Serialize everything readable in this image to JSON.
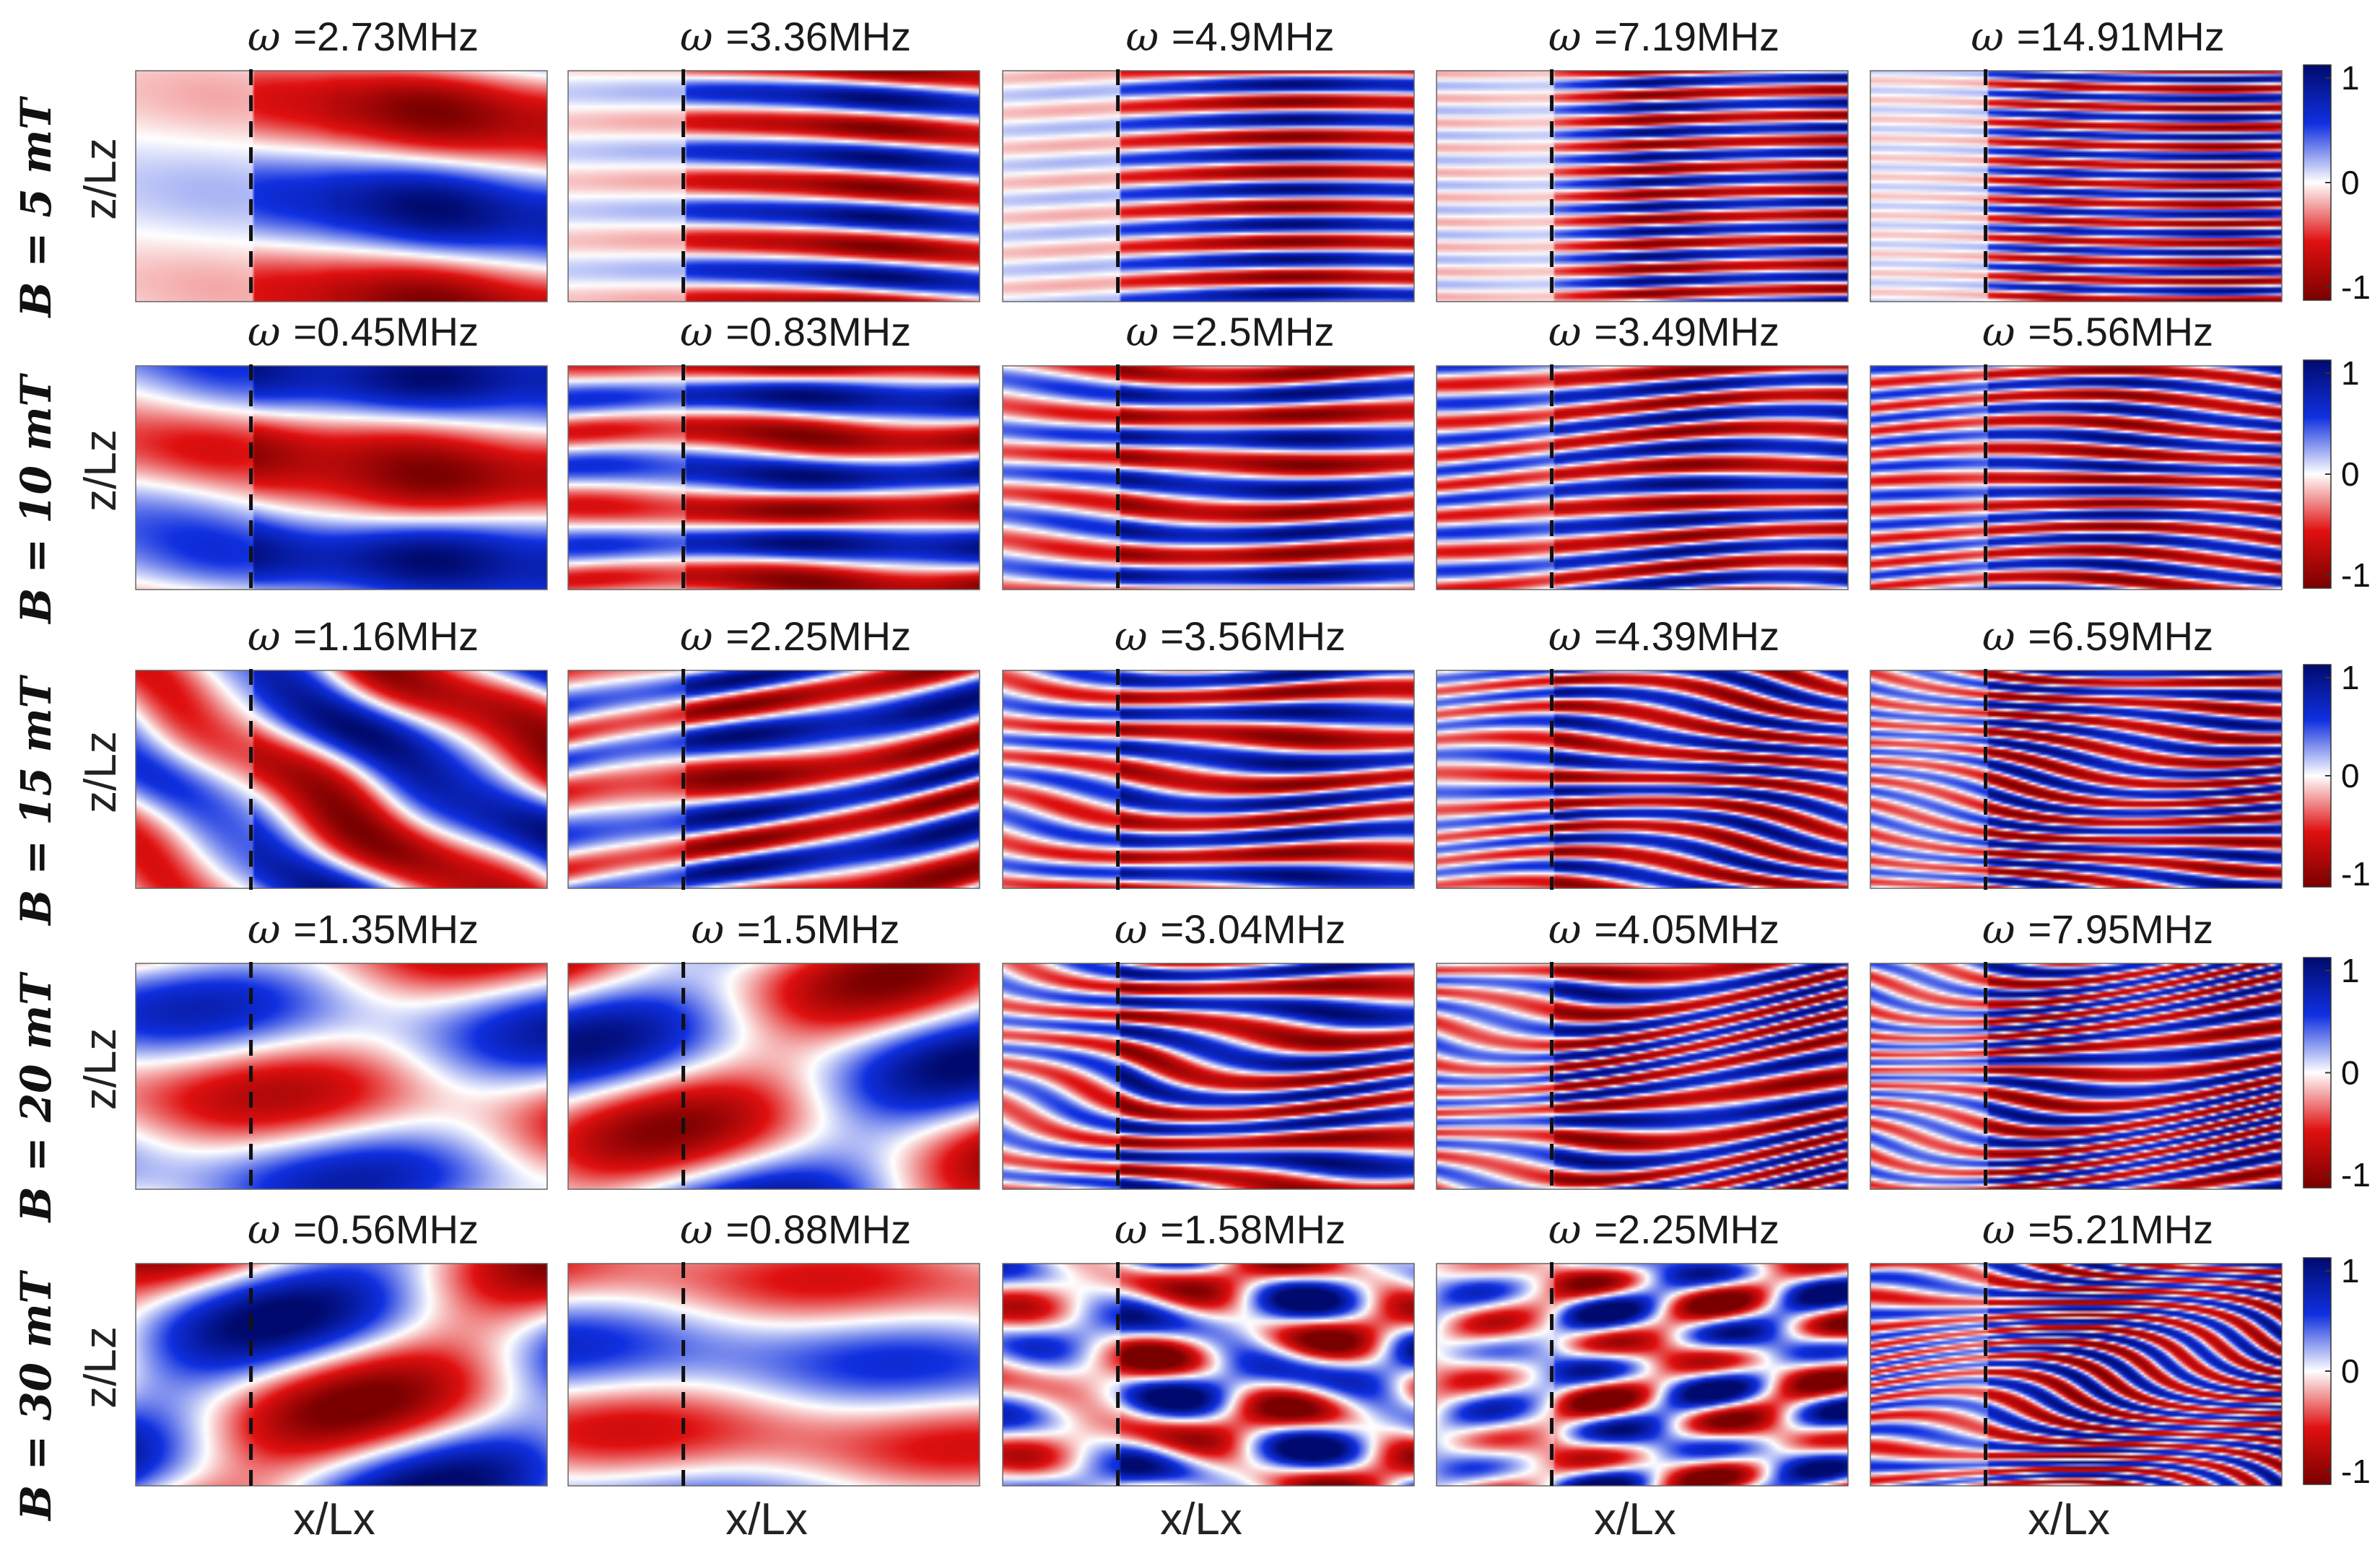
{
  "chart_data": {
    "type": "heatmap",
    "colorbar": {
      "min": -1,
      "max": 1,
      "ticks": [
        "1",
        "0",
        "-1"
      ],
      "colormap": [
        "#7a0000",
        "#e01010",
        "#ffffff",
        "#1030e0",
        "#000a6e"
      ]
    },
    "x_label": "x/Lx",
    "z_label": "z/Lz",
    "omega_symbol": "ω",
    "dashed_line_x_fraction": 0.28,
    "rows": [
      {
        "label": "B = 5 mT",
        "frequencies": [
          "=2.73MHz",
          "=3.36MHz",
          "=4.9MHz",
          "=7.19MHz",
          "=14.91MHz"
        ]
      },
      {
        "label": "B = 10 mT",
        "frequencies": [
          "=0.45MHz",
          "=0.83MHz",
          "=2.5MHz",
          "=3.49MHz",
          "=5.56MHz"
        ]
      },
      {
        "label": "B = 15 mT",
        "frequencies": [
          "=1.16MHz",
          "=2.25MHz",
          "=3.56MHz",
          "=4.39MHz",
          "=6.59MHz"
        ]
      },
      {
        "label": "B = 20 mT",
        "frequencies": [
          "=1.35MHz",
          "=1.5MHz",
          "=3.04MHz",
          "=4.05MHz",
          "=7.95MHz"
        ]
      },
      {
        "label": "B = 30 mT",
        "frequencies": [
          "=0.56MHz",
          "=0.88MHz",
          "=1.58MHz",
          "=2.25MHz",
          "=5.21MHz"
        ]
      }
    ]
  }
}
